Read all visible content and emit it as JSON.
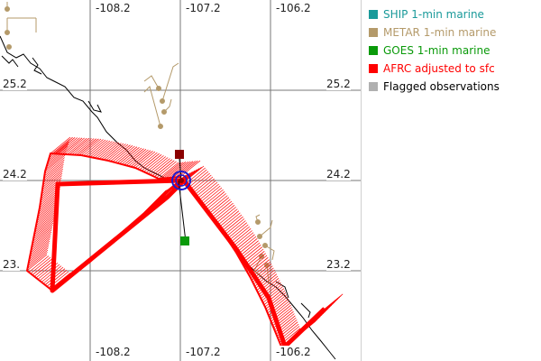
{
  "map": {
    "lon_labels": [
      "-108.2",
      "-107.2",
      "-106.2"
    ],
    "lat_labels": [
      "25.2",
      "24.2",
      "23.2"
    ],
    "lat_label_partial": "23."
  },
  "legend": {
    "items": [
      {
        "label": "SHIP 1-min marine",
        "color": "#1a9a9a"
      },
      {
        "label": "METAR 1-min marine",
        "color": "#b49a6a"
      },
      {
        "label": "GOES 1-min marine",
        "color": "#0a9a0a"
      },
      {
        "label": "AFRC adjusted to sfc",
        "color": "#ff0000"
      },
      {
        "label": "Flagged observations",
        "color": "#b0b0b0"
      }
    ]
  },
  "colors": {
    "afrc": "#ff0000",
    "metar": "#b49a6a",
    "goes": "#0a9a0a",
    "center_marker": "#1a1ad0",
    "recent_obs": "#8b0000",
    "coast": "#000000",
    "grid": "#777777"
  }
}
